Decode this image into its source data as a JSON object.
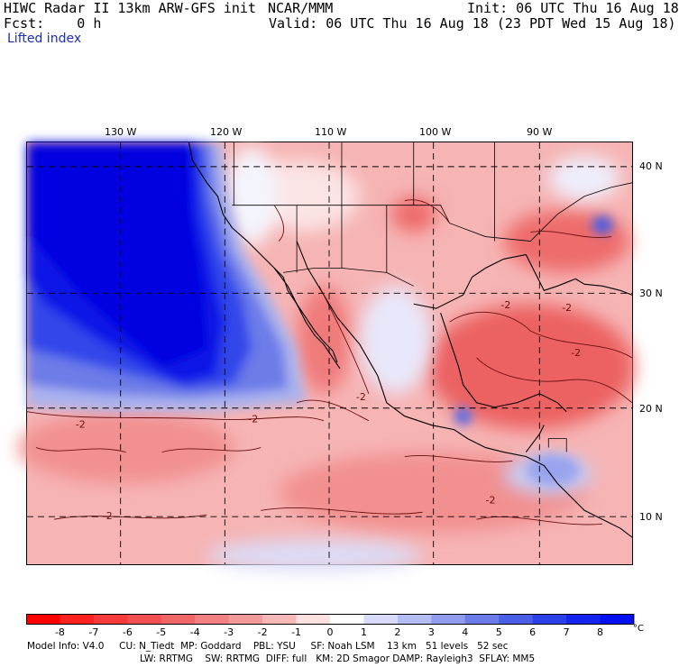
{
  "header": {
    "line1_left": "HIWC Radar II 13km ARW-GFS init",
    "line1_mid": "NCAR/MMM",
    "line1_right": "Init: 06 UTC Thu 16 Aug 18",
    "line2_left": "Fcst:    0 h",
    "line2_right": "Valid: 06 UTC Thu 16 Aug 18 (23 PDT Wed 15 Aug 18)",
    "field": "Lifted index"
  },
  "map": {
    "lon_labels": [
      "130 W",
      "120 W",
      "110 W",
      "100 W",
      "90 W"
    ],
    "lat_labels": [
      "40 N",
      "30 N",
      "20 N",
      "10 N"
    ],
    "contour_labels": [
      "-2",
      "-2",
      "-2",
      "-2",
      "-2",
      "-2",
      "-2",
      "-2"
    ],
    "colors": {
      "ocean_blue": "#1010e8",
      "red": "#f07070",
      "light": "#f6d0d0"
    }
  },
  "colorbar": {
    "ticks": [
      "-8",
      "-7",
      "-6",
      "-5",
      "-4",
      "-3",
      "-2",
      "-1",
      "0",
      "1",
      "2",
      "3",
      "4",
      "5",
      "6",
      "7",
      "8"
    ],
    "unit": "°C",
    "colors": [
      "#ff0000",
      "#ff2020",
      "#f63a3a",
      "#f25050",
      "#ee6666",
      "#f28080",
      "#f49a9a",
      "#f7b8b8",
      "#fde0e0",
      "#ffffff",
      "#d8dcfa",
      "#b4bcf4",
      "#909cee",
      "#6c7ce8",
      "#4a5ee6",
      "#2c40ea",
      "#1424ee",
      "#0010f0"
    ]
  },
  "footer": {
    "line1": "Model Info: V4.0     CU: N_Tiedt  MP: Goddard    PBL: YSU     SF: Noah LSM    13 km   51 levels   52 sec",
    "line2": "LW: RRTMG    SW: RRTMG  DIFF: full   KM: 2D Smagor DAMP: Rayleigh3  SFLAY: MM5"
  }
}
